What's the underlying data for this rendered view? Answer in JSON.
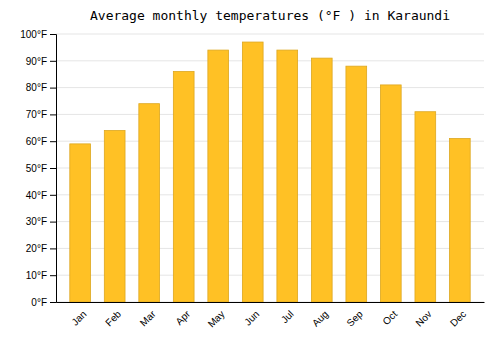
{
  "chart_data": {
    "type": "bar",
    "title": "Average monthly temperatures (°F ) in Karaundi",
    "categories": [
      "Jan",
      "Feb",
      "Mar",
      "Apr",
      "May",
      "Jun",
      "Jul",
      "Aug",
      "Sep",
      "Oct",
      "Nov",
      "Dec"
    ],
    "values": [
      59,
      64,
      74,
      86,
      94,
      97,
      94,
      91,
      88,
      81,
      71,
      61
    ],
    "color": "#FFC125",
    "ylim": [
      0,
      100
    ],
    "yticks": [
      {
        "value": 0,
        "label": "0°F"
      },
      {
        "value": 10,
        "label": "10°F"
      },
      {
        "value": 20,
        "label": "20°F"
      },
      {
        "value": 30,
        "label": "30°F"
      },
      {
        "value": 40,
        "label": "40°F"
      },
      {
        "value": 50,
        "label": "50°F"
      },
      {
        "value": 60,
        "label": "60°F"
      },
      {
        "value": 70,
        "label": "70°F"
      },
      {
        "value": 80,
        "label": "80°F"
      },
      {
        "value": 90,
        "label": "90°F"
      },
      {
        "value": 100,
        "label": "100°F"
      }
    ],
    "grid": true
  }
}
